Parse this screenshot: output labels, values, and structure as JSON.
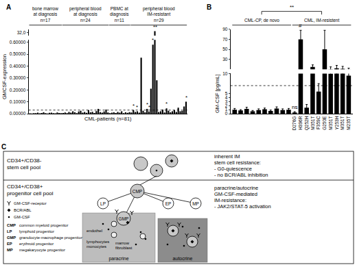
{
  "chart_data": [
    {
      "panel": "A",
      "type": "bar",
      "y_label": "GMCSF-expression",
      "x_label": "CML-patients (n=81)",
      "tick_labels": "y",
      "color": "#000000",
      "grid": false,
      "values": [
        0.003,
        0.002,
        0.005,
        0.004,
        0.008,
        0.003,
        0.006,
        0.012,
        0.004,
        0.002,
        0.007,
        0.009,
        0.005,
        0.003,
        0.01,
        0.006,
        0.004,
        0.006,
        0.01,
        0.004,
        0.015,
        0.008,
        0.02,
        0.012,
        0.005,
        0.018,
        0.025,
        0.009,
        0.014,
        0.007,
        0.03,
        0.011,
        0.016,
        0.006,
        0.022,
        0.04,
        0.013,
        0.008,
        0.019,
        0.035,
        0.01,
        0.004,
        0.008,
        0.012,
        0.006,
        0.015,
        0.009,
        0.02,
        0.005,
        0.011,
        0.007,
        0.013,
        0.01,
        0.03,
        0.015,
        0.02,
        0.008,
        0.47,
        0.025,
        0.012,
        0.04,
        0.018,
        0.21,
        0.58,
        32.2,
        0.28,
        0.015,
        0.02,
        0.035,
        0.01,
        0.045,
        0.025,
        0.012,
        0.02,
        0.03,
        0.015,
        0.05,
        0.02,
        0.025,
        0.06,
        0.1
      ],
      "y_segments": [
        {
          "ylim": [
            0,
            0.62
          ],
          "yticks": [
            {
              "value": 0,
              "label": "0.00000"
            },
            {
              "value": 0.1,
              "label": "0.10000"
            },
            {
              "value": 0.2,
              "label": "0.20000"
            },
            {
              "value": 0.3,
              "label": "0.30000"
            },
            {
              "value": 0.4,
              "label": "0.40000"
            },
            {
              "value": 0.5,
              "label": "0.50000"
            },
            {
              "value": 0.6,
              "label": "0.60000"
            }
          ]
        },
        {
          "ylim": [
            31.5,
            32.5
          ],
          "yticks": [
            {
              "value": 32,
              "label": "32,0"
            }
          ]
        }
      ],
      "threshold": 0.03,
      "groups": [
        {
          "label": "bone marrow at diagnosis",
          "n": "n=17",
          "count": 17
        },
        {
          "label": "peripheral blood at diagnosis",
          "n": "n=24",
          "count": 24
        },
        {
          "label": "PBMC at diagnosis",
          "n": "n=11",
          "count": 11
        },
        {
          "label": "peripheral blood IM-resistant",
          "n": "n=29",
          "count": 29
        }
      ],
      "annotations": [
        {
          "index": 53,
          "text": "*"
        },
        {
          "index": 55,
          "text": "*"
        },
        {
          "index": 60,
          "text": "*"
        },
        {
          "index": 61,
          "text": "*"
        },
        {
          "index": 63,
          "text": "*"
        },
        {
          "index": 64,
          "text": "**"
        },
        {
          "index": 70,
          "text": "*"
        },
        {
          "index": 80,
          "text": "*"
        }
      ]
    },
    {
      "panel": "B",
      "type": "bar",
      "y_label": "GM-CSF [pg/mL]",
      "color": "#000000",
      "grid": false,
      "categories": [
        null,
        null,
        null,
        null,
        null,
        null,
        null,
        null,
        null,
        null,
        "D276G",
        "H396R",
        "Q252H",
        "M351T",
        "F359C",
        "G250E",
        "M351T",
        "Y253H",
        "M351T",
        "M235T"
      ],
      "values": [
        1.0,
        0.8,
        1.2,
        0.6,
        0.9,
        1.1,
        0.7,
        1.3,
        0.9,
        1.0,
        0.3,
        70,
        1.5,
        15,
        5.5,
        50,
        10,
        12,
        11,
        9.5
      ],
      "errors": [
        0.3,
        0.2,
        0.4,
        0.2,
        0.3,
        0.3,
        0.2,
        0.4,
        0.3,
        0.3,
        0.2,
        18,
        0.8,
        4,
        2,
        38,
        5,
        6,
        5,
        3
      ],
      "y_segments": [
        {
          "ylim": [
            0,
            10
          ],
          "yticks": [
            0,
            1,
            2,
            3,
            4,
            5,
            10
          ]
        },
        {
          "ylim": [
            10,
            90
          ],
          "yticks": [
            30,
            50,
            70,
            90
          ]
        }
      ],
      "threshold": 7,
      "groups": [
        {
          "label": "CML-CP, de novo",
          "count": 10
        },
        {
          "label": "CML, IM-resistent",
          "count": 10
        }
      ],
      "comparison": "**",
      "annotations": [
        {
          "index": 10,
          "text": "ns"
        },
        {
          "index": 11,
          "text": "#"
        }
      ]
    }
  ],
  "diagram": {
    "panel": "C",
    "stem_pool": [
      "CD34+/CD38-",
      "stem cell pool"
    ],
    "stem_resistance": [
      "inherent IM",
      "stem cell resistance:",
      "- G0-quiescence",
      "- no BCR/ABL inhibition"
    ],
    "progenitor_pool": [
      "CD34+/CD38+",
      "progenitor cell pool"
    ],
    "progenitor_resistance": [
      "paracrine/autocrine",
      "GM-CSF-mediated",
      "IM-resistance:",
      "- JAK2/STAT-5 activation"
    ],
    "nodes": [
      "CMP",
      "LP",
      "GMP",
      "EP",
      "MP"
    ],
    "paracrine": {
      "label": "paracrine",
      "cells": [
        "endothel",
        "lymphocytes monocytes",
        "marrow fibroblast"
      ]
    },
    "autocrine": {
      "label": "autocrine"
    },
    "legend_symbols": [
      "GM-CSF-receptor",
      "BCR/ABL",
      "GM-CSF"
    ],
    "abbreviations": [
      {
        "abbr": "CMP",
        "text": "common myeloid progenitor"
      },
      {
        "abbr": "LP",
        "text": "lymphoid progenitor"
      },
      {
        "abbr": "GMP",
        "text": "granulocyte-macrophage progenitor"
      },
      {
        "abbr": "EP",
        "text": "erythroid progenitor"
      },
      {
        "abbr": "MP",
        "text": "megakaryocyte progenitor"
      }
    ]
  }
}
